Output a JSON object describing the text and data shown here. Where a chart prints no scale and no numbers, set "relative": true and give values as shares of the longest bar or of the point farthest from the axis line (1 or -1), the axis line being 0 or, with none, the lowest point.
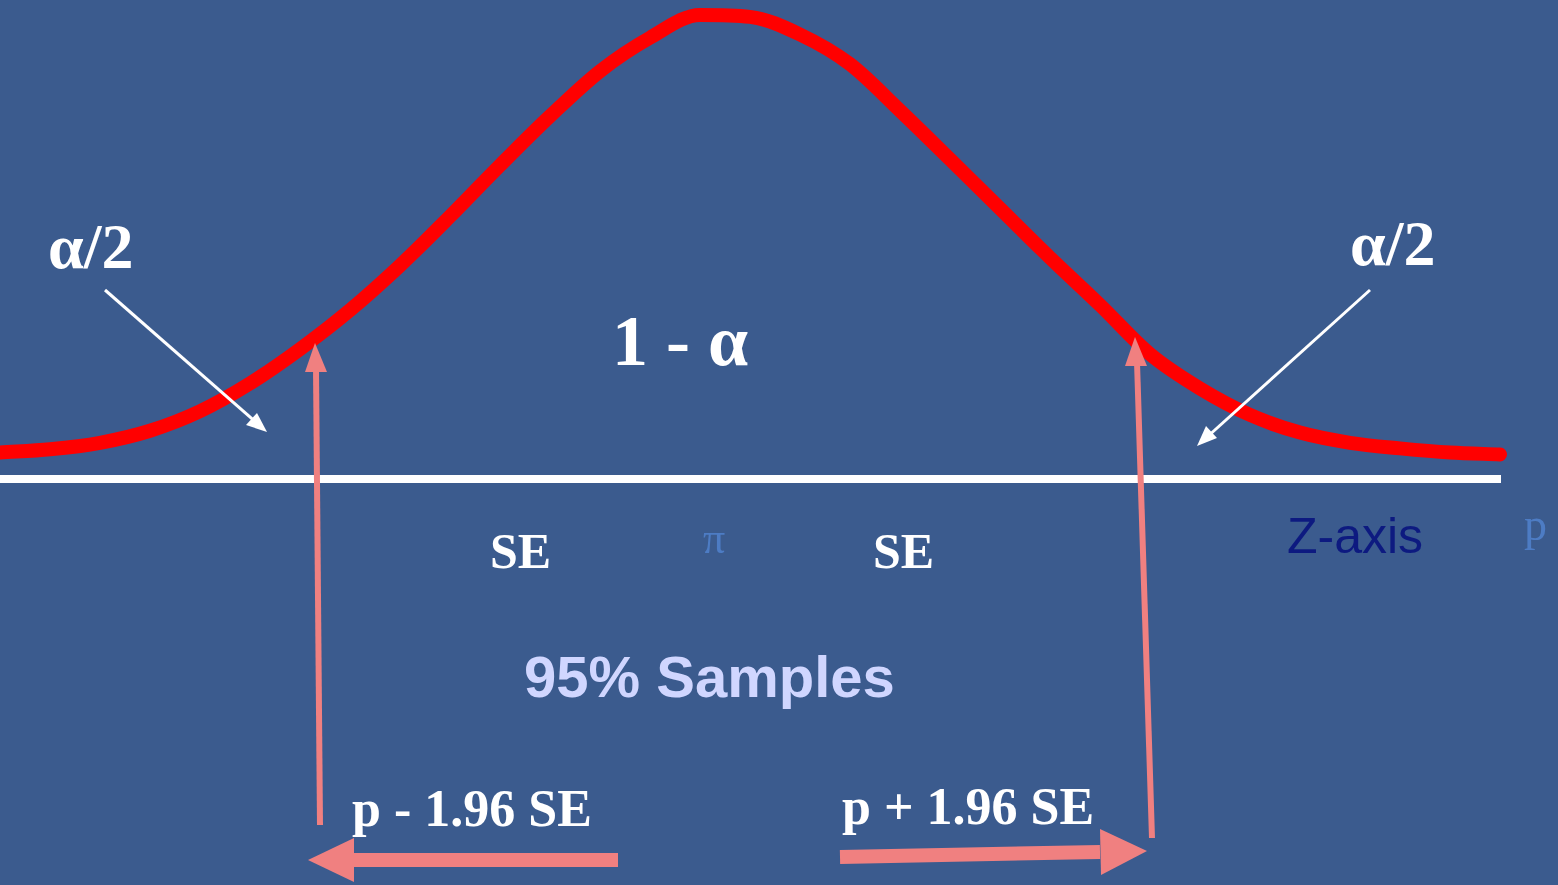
{
  "chart_data": {
    "type": "line",
    "relative": true,
    "categories": [
      null,
      null,
      null,
      null,
      null,
      null,
      null,
      null,
      null,
      null,
      null,
      null,
      null,
      null,
      null,
      null,
      null,
      null,
      null,
      null,
      null,
      null,
      null,
      null,
      null,
      null,
      null,
      null,
      null,
      null,
      null
    ],
    "values": [
      0.057,
      0.064,
      0.078,
      0.104,
      0.146,
      0.206,
      0.28,
      0.364,
      0.46,
      0.566,
      0.676,
      0.782,
      0.879,
      0.951,
      1,
      0.996,
      0.958,
      0.894,
      0.794,
      0.689,
      0.583,
      0.477,
      0.375,
      0.269,
      0.195,
      0.138,
      0.1,
      0.078,
      0.066,
      0.057,
      0.053
    ],
    "color": "#ff0000",
    "marker": "none",
    "line_style": "solid",
    "xlabel": "Z-axis",
    "annotations": [
      "α/2",
      "α/2",
      "1 - α",
      "SE",
      "π",
      "SE",
      "95% Samples",
      "p - 1.96 SE",
      "p + 1.96 SE",
      "p"
    ]
  }
}
